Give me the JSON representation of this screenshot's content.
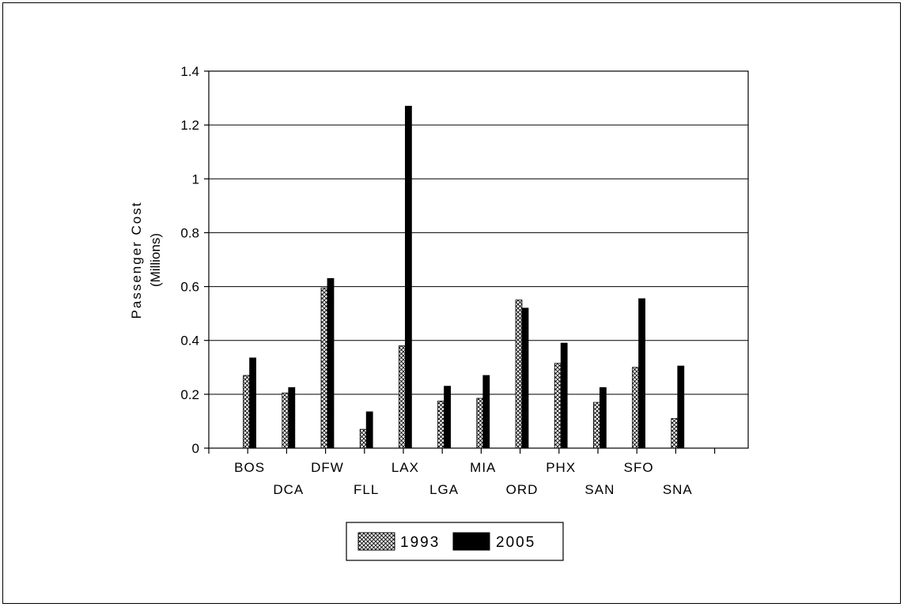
{
  "chart_data": {
    "type": "bar",
    "title": "",
    "xlabel": "",
    "ylabel": "Passenger Cost",
    "ylabel_unit": "(Millions)",
    "ylim": [
      0,
      1.4
    ],
    "yticks": [
      "0",
      "0.2",
      "0.4",
      "0.6",
      "0.8",
      "1",
      "1.2",
      "1.4"
    ],
    "grid": true,
    "legend_position": "bottom-center",
    "categories": [
      "BOS",
      "DCA",
      "DFW",
      "FLL",
      "LAX",
      "LGA",
      "MIA",
      "ORD",
      "PHX",
      "SAN",
      "SFO",
      "SNA"
    ],
    "series": [
      {
        "name": "1993",
        "pattern": "crosshatch",
        "color": "#ffffff",
        "values": [
          0.27,
          0.205,
          0.595,
          0.07,
          0.38,
          0.175,
          0.185,
          0.55,
          0.315,
          0.17,
          0.3,
          0.11
        ]
      },
      {
        "name": "2005",
        "pattern": "solid",
        "color": "#000000",
        "values": [
          0.335,
          0.225,
          0.63,
          0.135,
          1.27,
          0.23,
          0.27,
          0.52,
          0.39,
          0.225,
          0.555,
          0.305
        ]
      }
    ]
  }
}
